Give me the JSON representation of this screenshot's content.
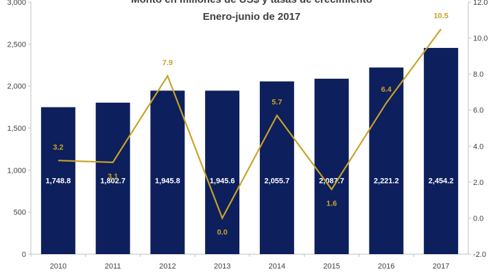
{
  "chart_data": {
    "type": "bar",
    "title": "Monto en millones de US$ y tasas de crecimiento",
    "subtitle": "Enero-junio de 2017",
    "categories": [
      "2010",
      "2011",
      "2012",
      "2013",
      "2014",
      "2015",
      "2016",
      "2017"
    ],
    "series": [
      {
        "type": "bar",
        "axis": "left",
        "values": [
          1748.8,
          1802.7,
          1945.8,
          1945.6,
          2055.7,
          2087.7,
          2221.2,
          2454.2
        ],
        "labels": [
          "1,748.8",
          "1,802.7",
          "1,945.8",
          "1,945.6",
          "2,055.7",
          "2,087.7",
          "2,221.2",
          "2,454.2"
        ],
        "color": "#0d1f5c"
      },
      {
        "type": "line",
        "axis": "right",
        "values": [
          3.2,
          3.1,
          7.9,
          0.0,
          5.7,
          1.6,
          6.4,
          10.5
        ],
        "labels": [
          "3.2",
          "3.1",
          "7.9",
          "0.0",
          "5.7",
          "1.6",
          "6.4",
          "10.5"
        ],
        "color": "#c9a227"
      }
    ],
    "y_left": {
      "range": [
        0,
        3000
      ],
      "ticks": [
        0,
        500,
        1000,
        1500,
        2000,
        2500,
        3000
      ],
      "tick_labels": [
        "0",
        "500",
        "1,000",
        "1,500",
        "2,000",
        "2,500",
        "3,000"
      ]
    },
    "y_right": {
      "range": [
        -2,
        12
      ],
      "ticks": [
        -2,
        0,
        2,
        4,
        6,
        8,
        10,
        12
      ],
      "tick_labels": [
        "-2.0",
        "0.0",
        "2.0",
        "4.0",
        "6.0",
        "8.0",
        "10.0",
        "12.0"
      ]
    },
    "grid": false,
    "legend": "none"
  }
}
